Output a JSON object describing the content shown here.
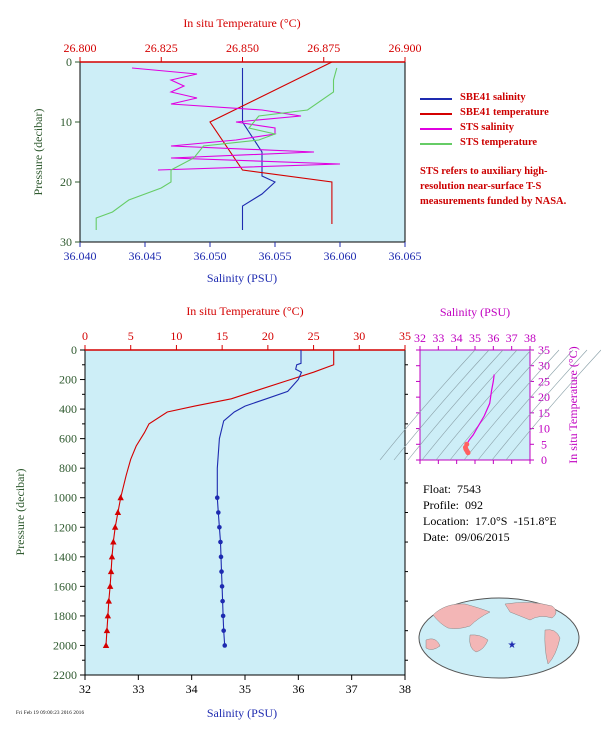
{
  "top_panel": {
    "x_top_title": "In situ Temperature (°C)",
    "x_bottom_title": "Salinity (PSU)",
    "y_title": "Pressure (decibar)",
    "temp_ticks": [
      "26.800",
      "26.825",
      "26.850",
      "26.875",
      "26.900"
    ],
    "sal_ticks": [
      "36.040",
      "36.045",
      "36.050",
      "36.055",
      "36.060",
      "36.065"
    ],
    "p_ticks": [
      "0",
      "10",
      "20",
      "30"
    ],
    "legend": [
      {
        "label": "SBE41 salinity",
        "color": "#1e2bb0"
      },
      {
        "label": "SBE41 temperature",
        "color": "#d40000"
      },
      {
        "label": "STS salinity",
        "color": "#e000e0"
      },
      {
        "label": "STS temperature",
        "color": "#66cc66"
      }
    ],
    "note": "STS refers to auxiliary high-resolution near-surface T-S measurements funded by NASA."
  },
  "bottom_panel": {
    "x_top_title": "In situ Temperature (°C)",
    "x_bottom_title": "Salinity (PSU)",
    "y_title": "Pressure (decibar)",
    "temp_ticks": [
      "0",
      "5",
      "10",
      "15",
      "20",
      "25",
      "30",
      "35"
    ],
    "sal_ticks": [
      "32",
      "33",
      "34",
      "35",
      "36",
      "37",
      "38"
    ],
    "p_ticks": [
      "0",
      "200",
      "400",
      "600",
      "800",
      "1000",
      "1200",
      "1400",
      "1600",
      "1800",
      "2000",
      "2200"
    ]
  },
  "ts_panel": {
    "x_title": "Salinity (PSU)",
    "y_title": "In situ Temperature (°C)",
    "sal_ticks": [
      "32",
      "33",
      "34",
      "35",
      "36",
      "37",
      "38"
    ],
    "temp_ticks": [
      "0",
      "5",
      "10",
      "15",
      "20",
      "25",
      "30",
      "35"
    ]
  },
  "float_info": {
    "float": "Float:  7543",
    "profile": "Profile:  092",
    "location": "Location:  17.0°S  -151.8°E",
    "date": "Date:  09/06/2015"
  },
  "footer_text": "Fri Feb 19 09:00:23 2016 2016",
  "colors": {
    "plot_bg": "#cdeef7",
    "temperature": "#d40000",
    "salinity": "#1e2bb0",
    "sts_salinity": "#e000e0",
    "sts_temperature": "#66cc66",
    "axis_temp": "#d40000",
    "axis_sal": "#1e2bb0",
    "axis_p": "#2f5a2f",
    "ts_axis": "#c000c0"
  },
  "chart_data": [
    {
      "type": "line",
      "title": "",
      "xlabel": "Salinity (PSU)",
      "x2label": "In situ Temperature (°C)",
      "ylabel": "Pressure (decibar)",
      "xlim": [
        36.04,
        36.065
      ],
      "x2lim": [
        26.8,
        26.9
      ],
      "ylim": [
        30,
        0
      ],
      "grid": false,
      "legend": "right",
      "series": [
        {
          "name": "SBE41 salinity",
          "axis": "salinity",
          "points": [
            [
              36.0525,
              1
            ],
            [
              36.0525,
              10
            ],
            [
              36.054,
              15
            ],
            [
              36.054,
              18
            ],
            [
              36.054,
              19
            ],
            [
              36.055,
              20
            ],
            [
              36.054,
              22
            ],
            [
              36.0525,
              24
            ],
            [
              36.0525,
              28
            ]
          ]
        },
        {
          "name": "SBE41 temperature",
          "axis": "temperature",
          "points": [
            [
              26.8775,
              0
            ],
            [
              26.84,
              10
            ],
            [
              26.85,
              18
            ],
            [
              26.8775,
              20
            ],
            [
              26.8775,
              25
            ],
            [
              26.8775,
              27
            ]
          ]
        },
        {
          "name": "STS salinity",
          "axis": "salinity",
          "points": [
            [
              36.044,
              1
            ],
            [
              36.049,
              2
            ],
            [
              36.047,
              3
            ],
            [
              36.048,
              4
            ],
            [
              36.047,
              5
            ],
            [
              36.049,
              6
            ],
            [
              36.047,
              7
            ],
            [
              36.054,
              8
            ],
            [
              36.057,
              9
            ],
            [
              36.052,
              10
            ],
            [
              36.055,
              11
            ],
            [
              36.055,
              12
            ],
            [
              36.052,
              13
            ],
            [
              36.047,
              14
            ],
            [
              36.058,
              15
            ],
            [
              36.047,
              16
            ],
            [
              36.06,
              17
            ],
            [
              36.046,
              18
            ]
          ]
        },
        {
          "name": "STS temperature",
          "axis": "temperature",
          "points": [
            [
              26.879,
              1
            ],
            [
              26.878,
              3
            ],
            [
              26.878,
              5
            ],
            [
              26.87,
              8
            ],
            [
              26.855,
              9
            ],
            [
              26.852,
              11
            ],
            [
              26.86,
              12
            ],
            [
              26.855,
              13
            ],
            [
              26.838,
              14
            ],
            [
              26.835,
              16
            ],
            [
              26.828,
              18
            ],
            [
              26.828,
              20
            ],
            [
              26.825,
              21
            ],
            [
              26.815,
              23
            ],
            [
              26.81,
              25
            ],
            [
              26.805,
              26
            ],
            [
              26.805,
              28
            ]
          ]
        }
      ]
    },
    {
      "type": "line",
      "title": "",
      "xlabel": "Salinity (PSU)",
      "x2label": "In situ Temperature (°C)",
      "ylabel": "Pressure (decibar)",
      "xlim": [
        32,
        38
      ],
      "x2lim": [
        0,
        35
      ],
      "ylim": [
        2200,
        0
      ],
      "grid": false,
      "series": [
        {
          "name": "",
          "axis": "temperature",
          "points": [
            [
              27.2,
              0
            ],
            [
              27.2,
              100
            ],
            [
              25,
              150
            ],
            [
              22,
              210
            ],
            [
              18,
              290
            ],
            [
              16,
              330
            ],
            [
              12,
              380
            ],
            [
              9,
              420
            ],
            [
              7,
              500
            ],
            [
              6.5,
              560
            ],
            [
              5.6,
              650
            ],
            [
              5,
              740
            ],
            [
              4.5,
              850
            ],
            [
              4.1,
              950
            ],
            [
              3.9,
              1000
            ],
            [
              3.6,
              1100
            ],
            [
              3.3,
              1200
            ],
            [
              3.1,
              1300
            ],
            [
              2.95,
              1400
            ],
            [
              2.85,
              1500
            ],
            [
              2.75,
              1600
            ],
            [
              2.6,
              1700
            ],
            [
              2.5,
              1800
            ],
            [
              2.4,
              1900
            ],
            [
              2.3,
              2000
            ]
          ]
        },
        {
          "name": "",
          "axis": "salinity",
          "points": [
            [
              36.05,
              0
            ],
            [
              36.05,
              90
            ],
            [
              35.97,
              100
            ],
            [
              35.95,
              130
            ],
            [
              36.06,
              150
            ],
            [
              36.0,
              200
            ],
            [
              35.8,
              280
            ],
            [
              35.4,
              330
            ],
            [
              35.0,
              380
            ],
            [
              34.8,
              420
            ],
            [
              34.6,
              480
            ],
            [
              34.52,
              600
            ],
            [
              34.48,
              800
            ],
            [
              34.48,
              1000
            ],
            [
              34.5,
              1100
            ],
            [
              34.52,
              1200
            ],
            [
              34.54,
              1300
            ],
            [
              34.55,
              1400
            ],
            [
              34.56,
              1500
            ],
            [
              34.57,
              1600
            ],
            [
              34.58,
              1700
            ],
            [
              34.59,
              1800
            ],
            [
              34.6,
              1900
            ],
            [
              34.62,
              2000
            ]
          ]
        }
      ]
    },
    {
      "type": "scatter",
      "title": "",
      "xlabel": "Salinity (PSU)",
      "ylabel": "In situ Temperature (°C)",
      "xlim": [
        32,
        38
      ],
      "ylim": [
        0,
        35
      ],
      "grid": false,
      "series": [
        {
          "name": "",
          "points": [
            [
              36.05,
              27.2
            ],
            [
              36.0,
              25
            ],
            [
              35.9,
              22
            ],
            [
              35.8,
              18
            ],
            [
              35.5,
              14
            ],
            [
              35.1,
              10
            ],
            [
              34.9,
              8
            ],
            [
              34.7,
              6.5
            ],
            [
              34.55,
              5
            ],
            [
              34.48,
              4
            ],
            [
              34.5,
              3.5
            ],
            [
              34.55,
              3
            ],
            [
              34.6,
              2.5
            ],
            [
              34.62,
              2.3
            ]
          ]
        }
      ]
    }
  ]
}
